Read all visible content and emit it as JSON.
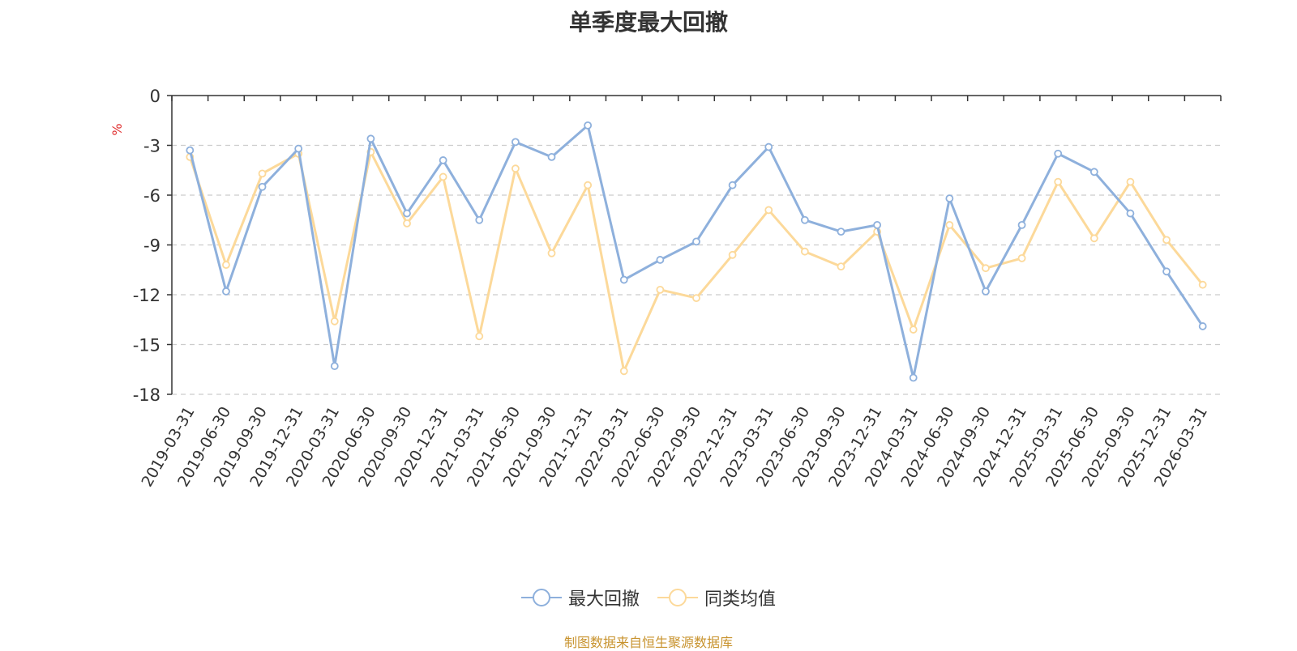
{
  "chart_data": {
    "type": "line",
    "title": "单季度最大回撤",
    "ylabel": "%",
    "ylim": [
      -18,
      0
    ],
    "yticks": [
      0,
      -3,
      -6,
      -9,
      -12,
      -15,
      -18
    ],
    "grid": true,
    "legend_position": "bottom",
    "categories": [
      "2019-03-31",
      "2019-06-30",
      "2019-09-30",
      "2019-12-31",
      "2020-03-31",
      "2020-06-30",
      "2020-09-30",
      "2020-12-31",
      "2021-03-31",
      "2021-06-30",
      "2021-09-30",
      "2021-12-31",
      "2022-03-31",
      "2022-06-30",
      "2022-09-30",
      "2022-12-31",
      "2023-03-31",
      "2023-06-30",
      "2023-09-30",
      "2023-12-31",
      "2024-03-31",
      "2024-06-30",
      "2024-09-30",
      "2024-12-31",
      "2025-03-31",
      "2025-06-30",
      "2025-09-30",
      "2025-12-31",
      "2026-03-31"
    ],
    "series": [
      {
        "name": "最大回撤",
        "color": "#8eb0dc",
        "values": [
          -3.3,
          -11.8,
          -5.5,
          -3.2,
          -16.3,
          -2.6,
          -7.1,
          -3.9,
          -7.5,
          -2.8,
          -3.7,
          -1.8,
          -11.1,
          -9.9,
          -8.8,
          -5.4,
          -3.1,
          -7.5,
          -8.2,
          -7.8,
          -17.0,
          -6.2,
          -11.8,
          -7.8,
          -3.5,
          -4.6,
          -7.1,
          -10.6,
          -13.9
        ]
      },
      {
        "name": "同类均值",
        "color": "#fcd99a",
        "values": [
          -3.7,
          -10.2,
          -4.7,
          -3.5,
          -13.6,
          -3.4,
          -7.7,
          -4.9,
          -14.5,
          -4.4,
          -9.5,
          -5.4,
          -16.6,
          -11.7,
          -12.2,
          -9.6,
          -6.9,
          -9.4,
          -10.3,
          -8.2,
          -14.1,
          -7.8,
          -10.4,
          -9.8,
          -5.2,
          -8.6,
          -5.2,
          -8.7,
          -11.4
        ]
      }
    ]
  },
  "footer": {
    "source": "制图数据来自恒生聚源数据库"
  }
}
